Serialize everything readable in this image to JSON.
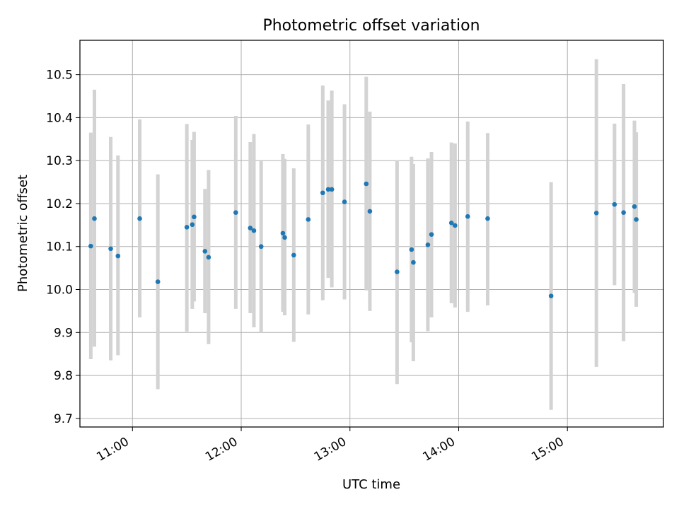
{
  "chart_data": {
    "type": "scatter",
    "title": "Photometric offset variation",
    "xlabel": "UTC time",
    "ylabel": "Photometric offset",
    "xlim": [
      "10:31",
      "15:53"
    ],
    "ylim": [
      9.68,
      10.58
    ],
    "x_ticks": [
      "11:00",
      "12:00",
      "13:00",
      "14:00",
      "15:00"
    ],
    "y_ticks": [
      "9.7",
      "9.8",
      "9.9",
      "10.0",
      "10.1",
      "10.2",
      "10.3",
      "10.4",
      "10.5"
    ],
    "grid": true,
    "series": [
      {
        "marker_color": "#1f77b4",
        "errorbar_color": "#d3d3d3",
        "points": [
          {
            "time": "10:37",
            "y": 10.101,
            "ymin": 9.838,
            "ymax": 10.365
          },
          {
            "time": "10:39",
            "y": 10.165,
            "ymin": 9.867,
            "ymax": 10.465
          },
          {
            "time": "10:48",
            "y": 10.095,
            "ymin": 9.835,
            "ymax": 10.355
          },
          {
            "time": "10:52",
            "y": 10.078,
            "ymin": 9.847,
            "ymax": 10.312
          },
          {
            "time": "11:04",
            "y": 10.165,
            "ymin": 9.935,
            "ymax": 10.396
          },
          {
            "time": "11:14",
            "y": 10.018,
            "ymin": 9.768,
            "ymax": 10.268
          },
          {
            "time": "11:30",
            "y": 10.145,
            "ymin": 9.902,
            "ymax": 10.385
          },
          {
            "time": "11:33",
            "y": 10.151,
            "ymin": 9.955,
            "ymax": 10.348
          },
          {
            "time": "11:34",
            "y": 10.169,
            "ymin": 9.972,
            "ymax": 10.367
          },
          {
            "time": "11:40",
            "y": 10.089,
            "ymin": 9.945,
            "ymax": 10.234
          },
          {
            "time": "11:42",
            "y": 10.075,
            "ymin": 9.873,
            "ymax": 10.278
          },
          {
            "time": "11:57",
            "y": 10.179,
            "ymin": 9.955,
            "ymax": 10.404
          },
          {
            "time": "12:05",
            "y": 10.143,
            "ymin": 9.945,
            "ymax": 10.343
          },
          {
            "time": "12:07",
            "y": 10.137,
            "ymin": 9.912,
            "ymax": 10.362
          },
          {
            "time": "12:11",
            "y": 10.1,
            "ymin": 9.9,
            "ymax": 10.3
          },
          {
            "time": "12:23",
            "y": 10.131,
            "ymin": 9.948,
            "ymax": 10.315
          },
          {
            "time": "12:24",
            "y": 10.121,
            "ymin": 9.94,
            "ymax": 10.304
          },
          {
            "time": "12:29",
            "y": 10.08,
            "ymin": 9.878,
            "ymax": 10.282
          },
          {
            "time": "12:37",
            "y": 10.163,
            "ymin": 9.942,
            "ymax": 10.384
          },
          {
            "time": "12:45",
            "y": 10.225,
            "ymin": 9.975,
            "ymax": 10.475
          },
          {
            "time": "12:48",
            "y": 10.233,
            "ymin": 10.027,
            "ymax": 10.44
          },
          {
            "time": "12:50",
            "y": 10.233,
            "ymin": 10.005,
            "ymax": 10.463
          },
          {
            "time": "12:57",
            "y": 10.204,
            "ymin": 9.977,
            "ymax": 10.431
          },
          {
            "time": "13:09",
            "y": 10.246,
            "ymin": 9.998,
            "ymax": 10.495
          },
          {
            "time": "13:11",
            "y": 10.182,
            "ymin": 9.95,
            "ymax": 10.414
          },
          {
            "time": "13:26",
            "y": 10.041,
            "ymin": 9.78,
            "ymax": 10.301
          },
          {
            "time": "13:34",
            "y": 10.093,
            "ymin": 9.877,
            "ymax": 10.309
          },
          {
            "time": "13:35",
            "y": 10.063,
            "ymin": 9.833,
            "ymax": 10.292
          },
          {
            "time": "13:43",
            "y": 10.104,
            "ymin": 9.903,
            "ymax": 10.305
          },
          {
            "time": "13:45",
            "y": 10.128,
            "ymin": 9.935,
            "ymax": 10.32
          },
          {
            "time": "13:56",
            "y": 10.155,
            "ymin": 9.968,
            "ymax": 10.342
          },
          {
            "time": "13:58",
            "y": 10.149,
            "ymin": 9.958,
            "ymax": 10.34
          },
          {
            "time": "14:05",
            "y": 10.17,
            "ymin": 9.948,
            "ymax": 10.391
          },
          {
            "time": "14:16",
            "y": 10.165,
            "ymin": 9.963,
            "ymax": 10.364
          },
          {
            "time": "14:51",
            "y": 9.985,
            "ymin": 9.72,
            "ymax": 10.25
          },
          {
            "time": "15:16",
            "y": 10.178,
            "ymin": 9.82,
            "ymax": 10.536
          },
          {
            "time": "15:26",
            "y": 10.198,
            "ymin": 10.01,
            "ymax": 10.386
          },
          {
            "time": "15:31",
            "y": 10.179,
            "ymin": 9.88,
            "ymax": 10.478
          },
          {
            "time": "15:37",
            "y": 10.193,
            "ymin": 9.992,
            "ymax": 10.393
          },
          {
            "time": "15:38",
            "y": 10.163,
            "ymin": 9.96,
            "ymax": 10.366
          }
        ]
      }
    ]
  }
}
